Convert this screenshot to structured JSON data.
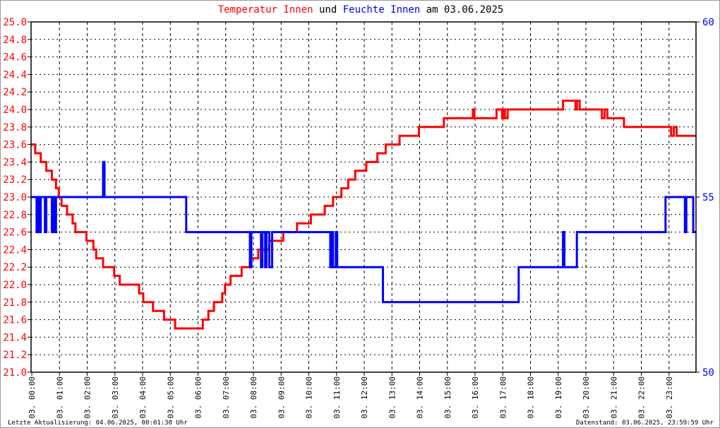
{
  "chart_data": {
    "type": "line",
    "title": {
      "part1": "Temperatur Innen",
      "part2": "und",
      "part3": "Feuchte Innen",
      "part4": "am 03.06.2025"
    },
    "x_unit": "hours of 03.06.2025",
    "x_ticks": [
      "03. 00:00",
      "03. 01:00",
      "03. 02:00",
      "03. 03:00",
      "03. 04:00",
      "03. 05:00",
      "03. 06:00",
      "03. 07:00",
      "03. 08:00",
      "03. 09:00",
      "03. 10:00",
      "03. 11:00",
      "03. 12:00",
      "03. 13:00",
      "03. 14:00",
      "03. 15:00",
      "03. 16:00",
      "03. 17:00",
      "03. 18:00",
      "03. 19:00",
      "03. 20:00",
      "03. 21:00",
      "03. 22:00",
      "03. 23:00"
    ],
    "xlim": [
      0,
      24
    ],
    "y_left": {
      "lim": [
        21.0,
        25.0
      ],
      "ticks": [
        "21.0",
        "21.2",
        "21.4",
        "21.6",
        "21.8",
        "22.0",
        "22.2",
        "22.4",
        "22.6",
        "22.8",
        "23.0",
        "23.2",
        "23.4",
        "23.6",
        "23.8",
        "24.0",
        "24.2",
        "24.4",
        "24.6",
        "24.8",
        "25.0"
      ],
      "color": "#ff0000"
    },
    "y_right": {
      "lim": [
        50,
        60
      ],
      "ticks": [
        "50",
        "55",
        "60"
      ],
      "color": "#0000ff"
    },
    "grid": true,
    "series": [
      {
        "name": "Temperatur Innen",
        "axis": "left",
        "color": "#ff0000",
        "step": true,
        "x": [
          0,
          0.15,
          0.35,
          0.55,
          0.75,
          0.9,
          1.0,
          1.1,
          1.3,
          1.5,
          1.6,
          2.0,
          2.25,
          2.35,
          2.6,
          3.0,
          3.2,
          3.9,
          4.05,
          4.4,
          4.8,
          5.2,
          6.2,
          6.4,
          6.6,
          6.9,
          7.0,
          7.2,
          7.6,
          7.9,
          8.2,
          8.6,
          9.1,
          9.6,
          10.1,
          10.6,
          10.9,
          11.2,
          11.45,
          11.7,
          12.1,
          12.5,
          12.8,
          13.3,
          14.0,
          14.9,
          15.95,
          16.0,
          16.05,
          16.8,
          17.0,
          17.05,
          17.1,
          17.2,
          17.25,
          19.2,
          19.65,
          19.7,
          19.8,
          20.6,
          20.7,
          20.8,
          21.4,
          23.1,
          23.2,
          23.3,
          24.0
        ],
        "y": [
          23.6,
          23.5,
          23.4,
          23.3,
          23.2,
          23.1,
          23.0,
          22.9,
          22.8,
          22.7,
          22.6,
          22.5,
          22.4,
          22.3,
          22.2,
          22.1,
          22.0,
          21.9,
          21.8,
          21.7,
          21.6,
          21.5,
          21.6,
          21.7,
          21.8,
          21.9,
          22.0,
          22.1,
          22.2,
          22.3,
          22.4,
          22.5,
          22.6,
          22.7,
          22.8,
          22.9,
          23.0,
          23.1,
          23.2,
          23.3,
          23.4,
          23.5,
          23.6,
          23.7,
          23.8,
          23.9,
          24.0,
          23.9,
          23.9,
          24.0,
          23.9,
          24.0,
          23.9,
          24.0,
          24.0,
          24.1,
          24.0,
          24.1,
          24.0,
          23.9,
          24.0,
          23.9,
          23.8,
          23.7,
          23.8,
          23.7,
          23.7
        ]
      },
      {
        "name": "Feuchte Innen",
        "axis": "right",
        "color": "#0000ff",
        "step": true,
        "x": [
          0,
          0.2,
          0.25,
          0.3,
          0.35,
          0.5,
          0.55,
          0.75,
          0.8,
          0.85,
          0.9,
          2.6,
          2.65,
          5.6,
          7.9,
          7.95,
          8.3,
          8.35,
          8.45,
          8.5,
          8.6,
          8.7,
          9.0,
          10.8,
          10.85,
          10.9,
          11.0,
          11.05,
          11.1,
          12.7,
          17.6,
          19.2,
          19.25,
          19.7,
          22.9,
          23.6,
          23.65,
          23.75,
          23.9,
          23.95,
          24.0
        ],
        "y": [
          55,
          54,
          55,
          54,
          55,
          54,
          55,
          54,
          55,
          54,
          55,
          56,
          55,
          54,
          53,
          54,
          53,
          54,
          53,
          54,
          53,
          54,
          54,
          53,
          54,
          53,
          54,
          53,
          53,
          52,
          53,
          54,
          53,
          54,
          55,
          54,
          55,
          55,
          54,
          54,
          54
        ]
      }
    ]
  },
  "footer": {
    "left": "Letzte Aktualisierung: 04.06.2025, 00:01:30 Uhr",
    "right": "Datenstand: 03.06.2025, 23:59:59 Uhr"
  }
}
